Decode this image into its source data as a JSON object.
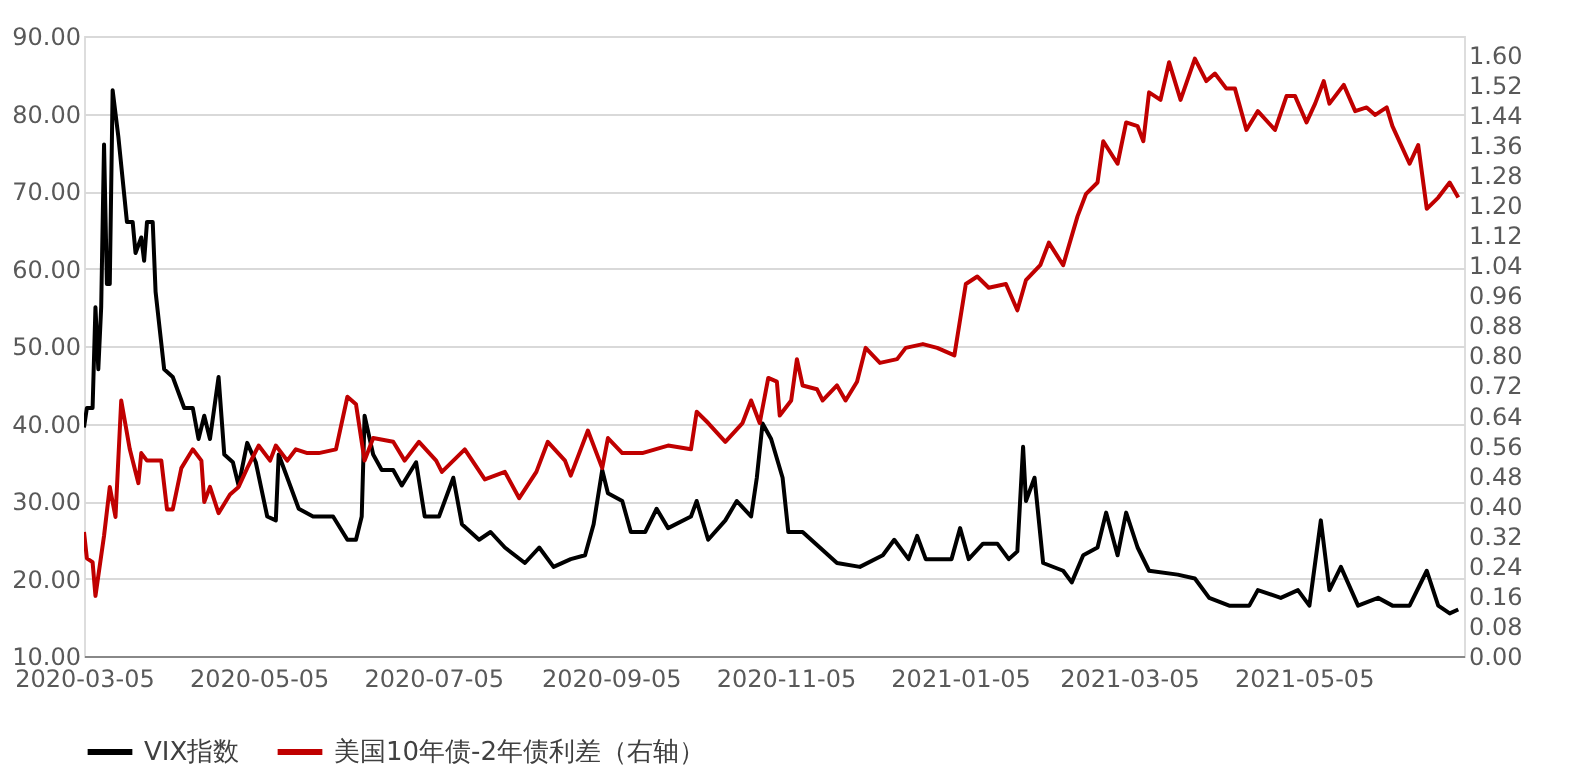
{
  "chart_data": {
    "type": "line",
    "xlim": [
      "2020-03-05",
      "2021-06-30"
    ],
    "xticks": [
      {
        "value": "2020-03-05",
        "label": "2020-03-05"
      },
      {
        "value": "2020-05-05",
        "label": "2020-05-05"
      },
      {
        "value": "2020-07-05",
        "label": "2020-07-05"
      },
      {
        "value": "2020-09-05",
        "label": "2020-09-05"
      },
      {
        "value": "2020-11-05",
        "label": "2020-11-05"
      },
      {
        "value": "2021-01-05",
        "label": "2021-01-05"
      },
      {
        "value": "2021-03-05",
        "label": "2021-03-05"
      },
      {
        "value": "2021-05-05",
        "label": "2021-05-05"
      }
    ],
    "ylim": [
      10,
      90
    ],
    "yticks": [
      {
        "value": 10,
        "label": "10.00"
      },
      {
        "value": 20,
        "label": "20.00"
      },
      {
        "value": 30,
        "label": "30.00"
      },
      {
        "value": 40,
        "label": "40.00"
      },
      {
        "value": 50,
        "label": "50.00"
      },
      {
        "value": 60,
        "label": "60.00"
      },
      {
        "value": 70,
        "label": "70.00"
      },
      {
        "value": 80,
        "label": "80.00"
      },
      {
        "value": 90,
        "label": "90.00"
      }
    ],
    "y2lim": [
      0,
      1.65
    ],
    "y2ticks": [
      {
        "value": 0,
        "label": "0.00"
      },
      {
        "value": 0.08,
        "label": "0.08"
      },
      {
        "value": 0.16,
        "label": "0.16"
      },
      {
        "value": 0.24,
        "label": "0.24"
      },
      {
        "value": 0.32,
        "label": "0.32"
      },
      {
        "value": 0.4,
        "label": "0.40"
      },
      {
        "value": 0.48,
        "label": "0.48"
      },
      {
        "value": 0.56,
        "label": "0.56"
      },
      {
        "value": 0.64,
        "label": "0.64"
      },
      {
        "value": 0.72,
        "label": "0.72"
      },
      {
        "value": 0.8,
        "label": "0.80"
      },
      {
        "value": 0.88,
        "label": "0.88"
      },
      {
        "value": 0.96,
        "label": "0.96"
      },
      {
        "value": 1.04,
        "label": "1.04"
      },
      {
        "value": 1.12,
        "label": "1.12"
      },
      {
        "value": 1.2,
        "label": "1.20"
      },
      {
        "value": 1.28,
        "label": "1.28"
      },
      {
        "value": 1.36,
        "label": "1.36"
      },
      {
        "value": 1.44,
        "label": "1.44"
      },
      {
        "value": 1.52,
        "label": "1.52"
      },
      {
        "value": 1.6,
        "label": "1.60"
      }
    ],
    "grid": "y",
    "legend": "bottom",
    "marker": "none",
    "line_style": "solid",
    "series": [
      {
        "name": "VIX指数",
        "color": "#000000",
        "x": [
          "2020-03-05",
          "2020-03-06",
          "2020-03-08",
          "2020-03-09",
          "2020-03-10",
          "2020-03-11",
          "2020-03-12",
          "2020-03-13",
          "2020-03-14",
          "2020-03-15",
          "2020-03-17",
          "2020-03-20",
          "2020-03-22",
          "2020-03-23",
          "2020-03-25",
          "2020-03-26",
          "2020-03-27",
          "2020-03-29",
          "2020-03-30",
          "2020-04-02",
          "2020-04-05",
          "2020-04-09",
          "2020-04-12",
          "2020-04-14",
          "2020-04-16",
          "2020-04-18",
          "2020-04-21",
          "2020-04-23",
          "2020-04-26",
          "2020-04-28",
          "2020-05-01",
          "2020-05-04",
          "2020-05-08",
          "2020-05-11",
          "2020-05-12",
          "2020-05-16",
          "2020-05-19",
          "2020-05-24",
          "2020-05-31",
          "2020-06-05",
          "2020-06-08",
          "2020-06-10",
          "2020-06-11",
          "2020-06-14",
          "2020-06-17",
          "2020-06-21",
          "2020-06-24",
          "2020-06-29",
          "2020-07-02",
          "2020-07-07",
          "2020-07-12",
          "2020-07-15",
          "2020-07-21",
          "2020-07-25",
          "2020-07-30",
          "2020-08-06",
          "2020-08-11",
          "2020-08-16",
          "2020-08-22",
          "2020-08-27",
          "2020-08-30",
          "2020-09-02",
          "2020-09-04",
          "2020-09-09",
          "2020-09-12",
          "2020-09-17",
          "2020-09-21",
          "2020-09-25",
          "2020-10-03",
          "2020-10-05",
          "2020-10-09",
          "2020-10-15",
          "2020-10-19",
          "2020-10-24",
          "2020-10-26",
          "2020-10-28",
          "2020-10-31",
          "2020-11-04",
          "2020-11-06",
          "2020-11-11",
          "2020-11-17",
          "2020-11-23",
          "2020-12-01",
          "2020-12-09",
          "2020-12-13",
          "2020-12-18",
          "2020-12-21",
          "2020-12-24",
          "2021-01-02",
          "2021-01-05",
          "2021-01-08",
          "2021-01-13",
          "2021-01-18",
          "2021-01-22",
          "2021-01-25",
          "2021-01-27",
          "2021-01-28",
          "2021-01-31",
          "2021-02-03",
          "2021-02-10",
          "2021-02-13",
          "2021-02-17",
          "2021-02-22",
          "2021-02-25",
          "2021-03-01",
          "2021-03-04",
          "2021-03-08",
          "2021-03-12",
          "2021-03-22",
          "2021-03-28",
          "2021-04-02",
          "2021-04-09",
          "2021-04-16",
          "2021-04-19",
          "2021-04-27",
          "2021-05-03",
          "2021-05-07",
          "2021-05-11",
          "2021-05-14",
          "2021-05-18",
          "2021-05-24",
          "2021-05-31",
          "2021-06-05",
          "2021-06-11",
          "2021-06-17",
          "2021-06-21",
          "2021-06-25",
          "2021-06-28"
        ],
        "values": [
          39.5,
          42,
          42,
          55,
          47,
          55,
          76,
          58,
          58,
          83,
          77,
          66,
          66,
          62,
          64,
          61,
          66,
          66,
          57,
          47,
          46,
          42,
          42,
          38,
          41,
          38,
          46,
          36,
          35,
          32,
          37.5,
          35,
          28,
          27.5,
          36,
          32,
          29,
          28,
          28,
          25,
          25,
          28,
          41,
          36,
          34,
          34,
          32,
          35,
          28,
          28,
          33,
          27,
          25,
          26,
          24,
          22,
          24,
          21.5,
          22.5,
          23,
          27,
          34,
          31,
          30,
          26,
          26,
          29,
          26.5,
          28,
          30,
          25,
          27.5,
          30,
          28,
          33,
          40,
          38,
          33,
          26,
          26,
          24,
          22,
          21.5,
          23,
          25,
          22.5,
          25.5,
          22.5,
          22.5,
          26.5,
          22.5,
          24.5,
          24.5,
          22.5,
          23.5,
          37,
          30,
          33,
          22,
          21,
          19.5,
          23,
          24,
          28.5,
          23,
          28.5,
          24,
          21,
          20.5,
          20,
          17.5,
          16.5,
          16.5,
          18.5,
          17.5,
          18.5,
          16.5,
          27.5,
          18.5,
          21.5,
          16.5,
          17.5,
          16.5,
          16.5,
          21,
          16.5,
          15.5,
          16
        ]
      },
      {
        "name": "美国10年债-2年债利差（右轴）",
        "color": "#c00000",
        "axis": "y2",
        "x": [
          "2020-03-05",
          "2020-03-06",
          "2020-03-08",
          "2020-03-09",
          "2020-03-12",
          "2020-03-14",
          "2020-03-16",
          "2020-03-18",
          "2020-03-21",
          "2020-03-24",
          "2020-03-25",
          "2020-03-27",
          "2020-04-01",
          "2020-04-03",
          "2020-04-05",
          "2020-04-08",
          "2020-04-12",
          "2020-04-15",
          "2020-04-16",
          "2020-04-18",
          "2020-04-21",
          "2020-04-25",
          "2020-04-28",
          "2020-05-01",
          "2020-05-05",
          "2020-05-09",
          "2020-05-11",
          "2020-05-15",
          "2020-05-18",
          "2020-05-22",
          "2020-05-26",
          "2020-06-01",
          "2020-06-05",
          "2020-06-08",
          "2020-06-11",
          "2020-06-14",
          "2020-06-21",
          "2020-06-25",
          "2020-06-30",
          "2020-07-06",
          "2020-07-08",
          "2020-07-16",
          "2020-07-23",
          "2020-07-30",
          "2020-08-04",
          "2020-08-10",
          "2020-08-14",
          "2020-08-20",
          "2020-08-22",
          "2020-08-28",
          "2020-09-02",
          "2020-09-04",
          "2020-09-09",
          "2020-09-16",
          "2020-09-25",
          "2020-10-03",
          "2020-10-05",
          "2020-10-09",
          "2020-10-15",
          "2020-10-21",
          "2020-10-24",
          "2020-10-27",
          "2020-10-30",
          "2020-11-02",
          "2020-11-03",
          "2020-11-07",
          "2020-11-09",
          "2020-11-11",
          "2020-11-16",
          "2020-11-18",
          "2020-11-23",
          "2020-11-26",
          "2020-11-30",
          "2020-12-03",
          "2020-12-08",
          "2020-12-14",
          "2020-12-17",
          "2020-12-23",
          "2020-12-28",
          "2021-01-03",
          "2021-01-07",
          "2021-01-11",
          "2021-01-15",
          "2021-01-21",
          "2021-01-25",
          "2021-01-28",
          "2021-02-02",
          "2021-02-05",
          "2021-02-10",
          "2021-02-15",
          "2021-02-18",
          "2021-02-22",
          "2021-02-24",
          "2021-03-01",
          "2021-03-04",
          "2021-03-08",
          "2021-03-10",
          "2021-03-12",
          "2021-03-16",
          "2021-03-19",
          "2021-03-23",
          "2021-03-28",
          "2021-04-01",
          "2021-04-04",
          "2021-04-08",
          "2021-04-11",
          "2021-04-15",
          "2021-04-19",
          "2021-04-25",
          "2021-04-29",
          "2021-05-02",
          "2021-05-06",
          "2021-05-09",
          "2021-05-12",
          "2021-05-14",
          "2021-05-19",
          "2021-05-23",
          "2021-05-27",
          "2021-05-30",
          "2021-06-03",
          "2021-06-05",
          "2021-06-11",
          "2021-06-14",
          "2021-06-17",
          "2021-06-21",
          "2021-06-25",
          "2021-06-28"
        ],
        "values": [
          0.33,
          0.26,
          0.25,
          0.16,
          0.32,
          0.45,
          0.37,
          0.68,
          0.55,
          0.46,
          0.54,
          0.52,
          0.52,
          0.39,
          0.39,
          0.5,
          0.55,
          0.52,
          0.41,
          0.45,
          0.38,
          0.43,
          0.45,
          0.5,
          0.56,
          0.52,
          0.56,
          0.52,
          0.55,
          0.54,
          0.54,
          0.55,
          0.69,
          0.67,
          0.52,
          0.58,
          0.57,
          0.52,
          0.57,
          0.52,
          0.49,
          0.55,
          0.47,
          0.49,
          0.42,
          0.49,
          0.57,
          0.52,
          0.48,
          0.6,
          0.5,
          0.58,
          0.54,
          0.54,
          0.56,
          0.55,
          0.65,
          0.62,
          0.57,
          0.62,
          0.68,
          0.62,
          0.74,
          0.73,
          0.64,
          0.68,
          0.79,
          0.72,
          0.71,
          0.68,
          0.72,
          0.68,
          0.73,
          0.82,
          0.78,
          0.79,
          0.82,
          0.83,
          0.82,
          0.8,
          0.99,
          1.01,
          0.98,
          0.99,
          0.92,
          1.0,
          1.04,
          1.1,
          1.04,
          1.17,
          1.23,
          1.26,
          1.37,
          1.31,
          1.42,
          1.41,
          1.37,
          1.5,
          1.48,
          1.58,
          1.48,
          1.59,
          1.53,
          1.55,
          1.51,
          1.51,
          1.4,
          1.45,
          1.4,
          1.49,
          1.49,
          1.42,
          1.47,
          1.53,
          1.47,
          1.52,
          1.45,
          1.46,
          1.44,
          1.46,
          1.41,
          1.31,
          1.36,
          1.19,
          1.22,
          1.26,
          1.22
        ]
      }
    ]
  }
}
